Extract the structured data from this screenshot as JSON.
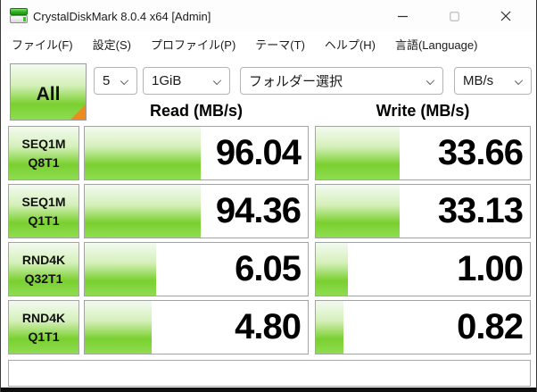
{
  "window": {
    "title": "CrystalDiskMark 8.0.4 x64 [Admin]"
  },
  "menu": {
    "items": [
      {
        "label": "ファイル(F)"
      },
      {
        "label": "設定(S)"
      },
      {
        "label": "プロファイル(P)"
      },
      {
        "label": "テーマ(T)"
      },
      {
        "label": "ヘルプ(H)"
      },
      {
        "label": "言語(Language)"
      }
    ]
  },
  "toolbar": {
    "all_button_label": "All",
    "test_count": "5",
    "test_size": "1GiB",
    "target_folder": "フォルダー選択",
    "unit": "MB/s"
  },
  "results": {
    "read_header": "Read (MB/s)",
    "write_header": "Write (MB/s)",
    "rows": [
      {
        "label_line1": "SEQ1M",
        "label_line2": "Q8T1",
        "read": "96.04",
        "write": "33.66",
        "read_fill": 52,
        "write_fill": 39
      },
      {
        "label_line1": "SEQ1M",
        "label_line2": "Q1T1",
        "read": "94.36",
        "write": "33.13",
        "read_fill": 52,
        "write_fill": 39
      },
      {
        "label_line1": "RND4K",
        "label_line2": "Q32T1",
        "read": "6.05",
        "write": "1.00",
        "read_fill": 32,
        "write_fill": 15
      },
      {
        "label_line1": "RND4K",
        "label_line2": "Q1T1",
        "read": "4.80",
        "write": "0.82",
        "read_fill": 30,
        "write_fill": 13
      }
    ]
  },
  "status_bar": {
    "text": ""
  },
  "colors": {
    "bar_green": "#7ad02f",
    "bar_green_light": "#d5f0ba",
    "accent_orange": "#ee8b20",
    "cell_border": "#a3a3a3",
    "text": "#000000"
  }
}
